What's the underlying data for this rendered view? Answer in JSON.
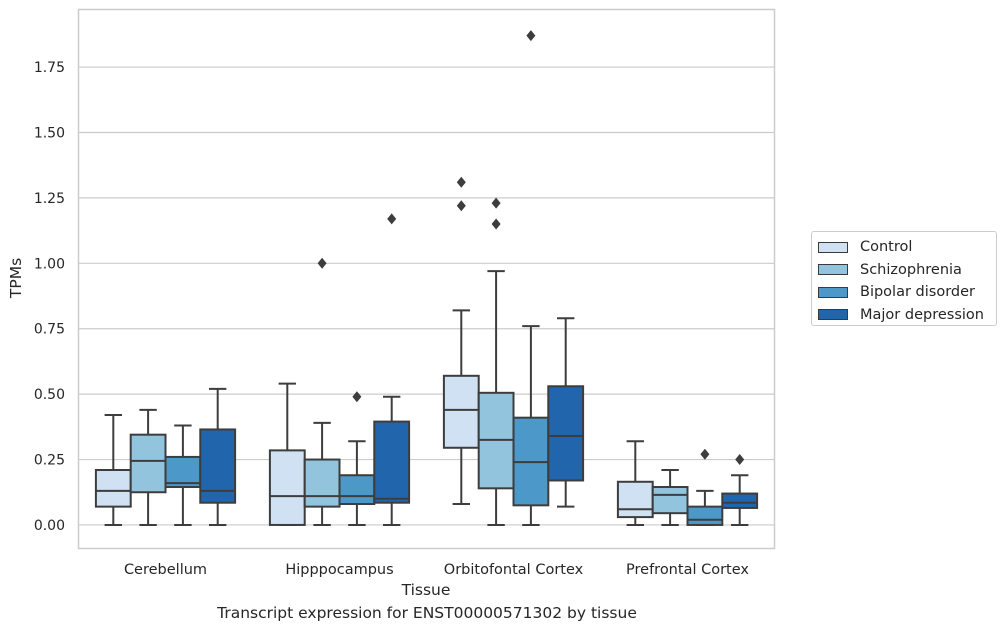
{
  "caption": "Transcript expression for ENST00000571302 by tissue",
  "chart_data": {
    "type": "boxplot",
    "xlabel": "Tissue",
    "ylabel": "TPMs",
    "ylim": [
      -0.09,
      1.97
    ],
    "yticks": [
      "0.00",
      "0.25",
      "0.50",
      "0.75",
      "1.00",
      "1.25",
      "1.50",
      "1.75"
    ],
    "grid": "horizontal",
    "legend_position": "right",
    "categories": [
      "Cerebellum",
      "Hipppocampus",
      "Orbitofontal Cortex",
      "Prefrontal Cortex"
    ],
    "series": [
      {
        "name": "Control",
        "color": "#cfe1f2",
        "boxes": [
          {
            "whislo": 0.0,
            "q1": 0.07,
            "med": 0.13,
            "q3": 0.21,
            "whishi": 0.42,
            "fliers": []
          },
          {
            "whislo": 0.0,
            "q1": 0.0,
            "med": 0.11,
            "q3": 0.285,
            "whishi": 0.54,
            "fliers": []
          },
          {
            "whislo": 0.08,
            "q1": 0.295,
            "med": 0.44,
            "q3": 0.57,
            "whishi": 0.82,
            "fliers": [
              1.22,
              1.31
            ]
          },
          {
            "whislo": 0.0,
            "q1": 0.03,
            "med": 0.06,
            "q3": 0.165,
            "whishi": 0.32,
            "fliers": []
          }
        ]
      },
      {
        "name": "Schizophrenia",
        "color": "#93c4de",
        "boxes": [
          {
            "whislo": 0.0,
            "q1": 0.125,
            "med": 0.245,
            "q3": 0.345,
            "whishi": 0.44,
            "fliers": []
          },
          {
            "whislo": 0.0,
            "q1": 0.07,
            "med": 0.11,
            "q3": 0.25,
            "whishi": 0.39,
            "fliers": [
              1.0
            ]
          },
          {
            "whislo": 0.0,
            "q1": 0.14,
            "med": 0.325,
            "q3": 0.505,
            "whishi": 0.97,
            "fliers": [
              1.15,
              1.23
            ]
          },
          {
            "whislo": 0.0,
            "q1": 0.045,
            "med": 0.115,
            "q3": 0.145,
            "whishi": 0.21,
            "fliers": []
          }
        ]
      },
      {
        "name": "Bipolar disorder",
        "color": "#4b98c9",
        "boxes": [
          {
            "whislo": 0.0,
            "q1": 0.145,
            "med": 0.16,
            "q3": 0.26,
            "whishi": 0.38,
            "fliers": []
          },
          {
            "whislo": 0.0,
            "q1": 0.08,
            "med": 0.11,
            "q3": 0.19,
            "whishi": 0.32,
            "fliers": [
              0.49
            ]
          },
          {
            "whislo": 0.0,
            "q1": 0.075,
            "med": 0.24,
            "q3": 0.41,
            "whishi": 0.76,
            "fliers": [
              1.87
            ]
          },
          {
            "whislo": 0.0,
            "q1": 0.0,
            "med": 0.02,
            "q3": 0.07,
            "whishi": 0.13,
            "fliers": [
              0.27
            ]
          }
        ]
      },
      {
        "name": "Major depression",
        "color": "#2166ac",
        "boxes": [
          {
            "whislo": 0.0,
            "q1": 0.085,
            "med": 0.13,
            "q3": 0.365,
            "whishi": 0.52,
            "fliers": []
          },
          {
            "whislo": 0.0,
            "q1": 0.085,
            "med": 0.1,
            "q3": 0.395,
            "whishi": 0.49,
            "fliers": [
              1.17
            ]
          },
          {
            "whislo": 0.07,
            "q1": 0.17,
            "med": 0.34,
            "q3": 0.53,
            "whishi": 0.79,
            "fliers": []
          },
          {
            "whislo": 0.0,
            "q1": 0.065,
            "med": 0.085,
            "q3": 0.12,
            "whishi": 0.19,
            "fliers": [
              0.25
            ]
          }
        ]
      }
    ]
  }
}
